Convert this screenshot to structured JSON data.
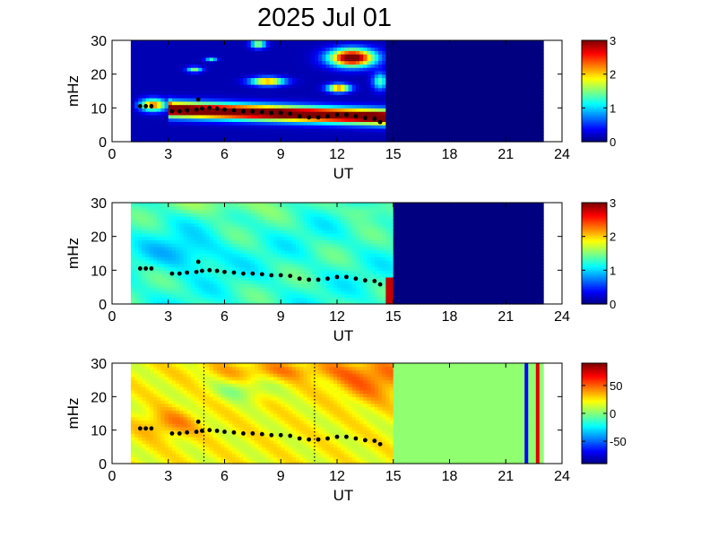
{
  "figure": {
    "title": "2025 Jul 01"
  },
  "colors": {
    "background": "#ffffff",
    "axis_bg": "#ffffff",
    "jet_low": "#00008f",
    "jet_high": "#800000",
    "zero_green": "#90ff70",
    "ridge_points": "#000000",
    "vline_blue": "#0000ff",
    "vline_red": "#e00000"
  },
  "chart_data": [
    {
      "type": "heatmap",
      "panel": "top",
      "xlabel": "UT",
      "ylabel": "mHz",
      "xlim": [
        0,
        24
      ],
      "ylim": [
        0,
        30
      ],
      "xticks": [
        0,
        3,
        6,
        9,
        12,
        15,
        18,
        21,
        24
      ],
      "yticks": [
        0,
        10,
        20,
        30
      ],
      "data_range_x": [
        1,
        23
      ],
      "colorbar": {
        "colormap": "jet",
        "clim": [
          0,
          3
        ],
        "ticks": [
          0,
          1,
          2,
          3
        ]
      },
      "background_value": 0,
      "ridge_points": [
        [
          1.5,
          10.5
        ],
        [
          1.8,
          10.5
        ],
        [
          2.1,
          10.5
        ],
        [
          3.2,
          9.0
        ],
        [
          3.6,
          9.0
        ],
        [
          4.0,
          9.3
        ],
        [
          4.5,
          9.5
        ],
        [
          4.8,
          9.8
        ],
        [
          5.2,
          10.0
        ],
        [
          5.6,
          9.8
        ],
        [
          6.0,
          9.5
        ],
        [
          6.5,
          9.3
        ],
        [
          7.0,
          9.0
        ],
        [
          7.5,
          9.0
        ],
        [
          8.0,
          8.8
        ],
        [
          8.5,
          8.5
        ],
        [
          9.0,
          8.5
        ],
        [
          9.5,
          8.3
        ],
        [
          10.0,
          7.5
        ],
        [
          10.5,
          7.2
        ],
        [
          11.0,
          7.2
        ],
        [
          11.5,
          7.5
        ],
        [
          12.0,
          8.0
        ],
        [
          12.5,
          8.0
        ],
        [
          13.0,
          7.5
        ],
        [
          13.5,
          7.0
        ],
        [
          14.0,
          6.8
        ],
        [
          14.3,
          5.8
        ],
        [
          4.6,
          12.5
        ]
      ]
    },
    {
      "type": "heatmap",
      "panel": "middle",
      "xlabel": "UT",
      "ylabel": "mHz",
      "xlim": [
        0,
        24
      ],
      "ylim": [
        0,
        30
      ],
      "xticks": [
        0,
        3,
        6,
        9,
        12,
        15,
        18,
        21,
        24
      ],
      "yticks": [
        0,
        10,
        20,
        30
      ],
      "data_range_x": [
        1,
        23
      ],
      "filled_until_x": 15,
      "colorbar": {
        "colormap": "jet",
        "clim": [
          0,
          3
        ],
        "ticks": [
          0,
          1,
          2,
          3
        ]
      },
      "typical_value": 1.3,
      "ridge_points": [
        [
          1.5,
          10.5
        ],
        [
          1.8,
          10.5
        ],
        [
          2.1,
          10.5
        ],
        [
          3.2,
          9.0
        ],
        [
          3.6,
          9.0
        ],
        [
          4.0,
          9.3
        ],
        [
          4.5,
          9.5
        ],
        [
          4.8,
          9.8
        ],
        [
          5.2,
          10.0
        ],
        [
          5.6,
          9.8
        ],
        [
          6.0,
          9.5
        ],
        [
          6.5,
          9.3
        ],
        [
          7.0,
          9.0
        ],
        [
          7.5,
          9.0
        ],
        [
          8.0,
          8.8
        ],
        [
          8.5,
          8.5
        ],
        [
          9.0,
          8.5
        ],
        [
          9.5,
          8.3
        ],
        [
          10.0,
          7.5
        ],
        [
          10.5,
          7.2
        ],
        [
          11.0,
          7.2
        ],
        [
          11.5,
          7.5
        ],
        [
          12.0,
          8.0
        ],
        [
          12.5,
          8.0
        ],
        [
          13.0,
          7.5
        ],
        [
          13.5,
          7.0
        ],
        [
          14.0,
          6.8
        ],
        [
          14.3,
          5.8
        ],
        [
          4.6,
          12.5
        ]
      ]
    },
    {
      "type": "heatmap",
      "panel": "bottom",
      "xlabel": "UT",
      "ylabel": "mHz",
      "xlim": [
        0,
        24
      ],
      "ylim": [
        0,
        30
      ],
      "xticks": [
        0,
        3,
        6,
        9,
        12,
        15,
        18,
        21,
        24
      ],
      "yticks": [
        0,
        10,
        20,
        30
      ],
      "data_range_x": [
        1,
        23
      ],
      "filled_until_x": 15,
      "colorbar": {
        "colormap": "jet",
        "clim": [
          -90,
          90
        ],
        "ticks": [
          -50,
          0,
          50
        ]
      },
      "dotted_vlines": [
        4.9,
        10.8
      ],
      "solid_vlines": [
        {
          "x": 22.1,
          "color": "blue"
        },
        {
          "x": 22.7,
          "color": "red"
        }
      ],
      "ridge_points": [
        [
          1.5,
          10.5
        ],
        [
          1.8,
          10.5
        ],
        [
          2.1,
          10.5
        ],
        [
          3.2,
          9.0
        ],
        [
          3.6,
          9.0
        ],
        [
          4.0,
          9.3
        ],
        [
          4.5,
          9.5
        ],
        [
          4.8,
          9.8
        ],
        [
          5.2,
          10.0
        ],
        [
          5.6,
          9.8
        ],
        [
          6.0,
          9.5
        ],
        [
          6.5,
          9.3
        ],
        [
          7.0,
          9.0
        ],
        [
          7.5,
          9.0
        ],
        [
          8.0,
          8.8
        ],
        [
          8.5,
          8.5
        ],
        [
          9.0,
          8.5
        ],
        [
          9.5,
          8.3
        ],
        [
          10.0,
          7.5
        ],
        [
          10.5,
          7.2
        ],
        [
          11.0,
          7.2
        ],
        [
          11.5,
          7.5
        ],
        [
          12.0,
          8.0
        ],
        [
          12.5,
          8.0
        ],
        [
          13.0,
          7.5
        ],
        [
          13.5,
          7.0
        ],
        [
          14.0,
          6.8
        ],
        [
          14.3,
          5.8
        ],
        [
          4.6,
          12.5
        ]
      ]
    }
  ]
}
